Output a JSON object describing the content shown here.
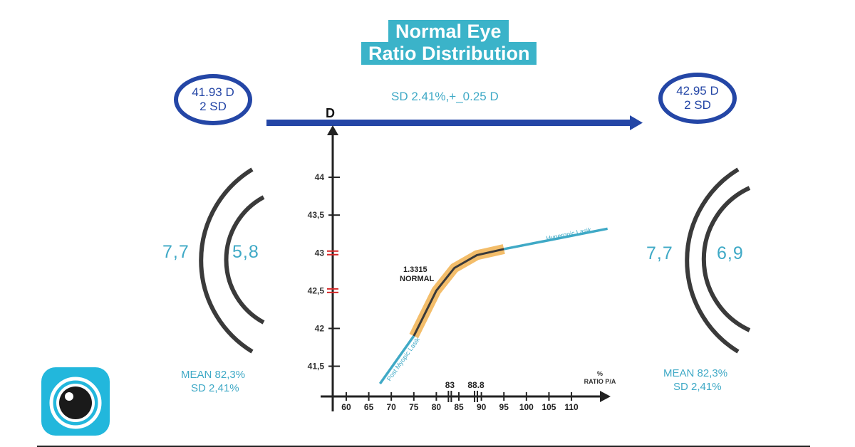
{
  "title": {
    "line1": "Normal Eye",
    "line2": "Ratio Distribution"
  },
  "left_oval": {
    "line1": "41.93 D",
    "line2": "2 SD"
  },
  "right_oval": {
    "line1": "42.95 D",
    "line2": "2 SD"
  },
  "top_caption": "SD 2.41%,+_0.25 D",
  "left_cornea": {
    "outer": "7,7",
    "inner": "5,8",
    "mean": "MEAN 82,3%",
    "sd": "SD 2,41%"
  },
  "right_cornea": {
    "outer": "7,7",
    "inner": "6,9",
    "mean": "MEAN 82,3%",
    "sd": "SD 2,41%"
  },
  "colors": {
    "accent": "#3bb3c9",
    "arrow": "#2446a6",
    "highlight": "#f2b65a",
    "red_tick": "#d62828"
  },
  "chart_data": {
    "type": "line",
    "ylabel": "D",
    "xlabel": "%\nRATIO P/A",
    "x_ticks": [
      60,
      65,
      70,
      75,
      80,
      85,
      90,
      95,
      100,
      105,
      110
    ],
    "y_ticks": [
      "41,5",
      "42",
      "42,5",
      "43",
      "43,5",
      "44"
    ],
    "y_tick_values": [
      41.5,
      42,
      42.5,
      43,
      43.5,
      44
    ],
    "xlim": [
      57,
      116
    ],
    "ylim": [
      41.1,
      44.5
    ],
    "marked_x": [
      {
        "value": 83,
        "label": "83"
      },
      {
        "value": 88.8,
        "label": "88.8"
      }
    ],
    "marked_y": [
      42.5,
      43
    ],
    "annotation": {
      "line1": "1.3315",
      "line2": "NORMAL"
    },
    "segments": [
      {
        "label": "Post Myopic Lasik",
        "points": [
          [
            67.5,
            41.27
          ],
          [
            75,
            41.9
          ]
        ]
      },
      {
        "label": "",
        "points": [
          [
            75,
            41.9
          ],
          [
            80,
            42.5
          ],
          [
            84,
            42.8
          ],
          [
            89,
            42.97
          ],
          [
            95,
            43.05
          ]
        ]
      },
      {
        "label": "Hyperopic Lasik",
        "points": [
          [
            95,
            43.05
          ],
          [
            118,
            43.32
          ]
        ]
      }
    ],
    "highlight_range": [
      75,
      95
    ]
  }
}
